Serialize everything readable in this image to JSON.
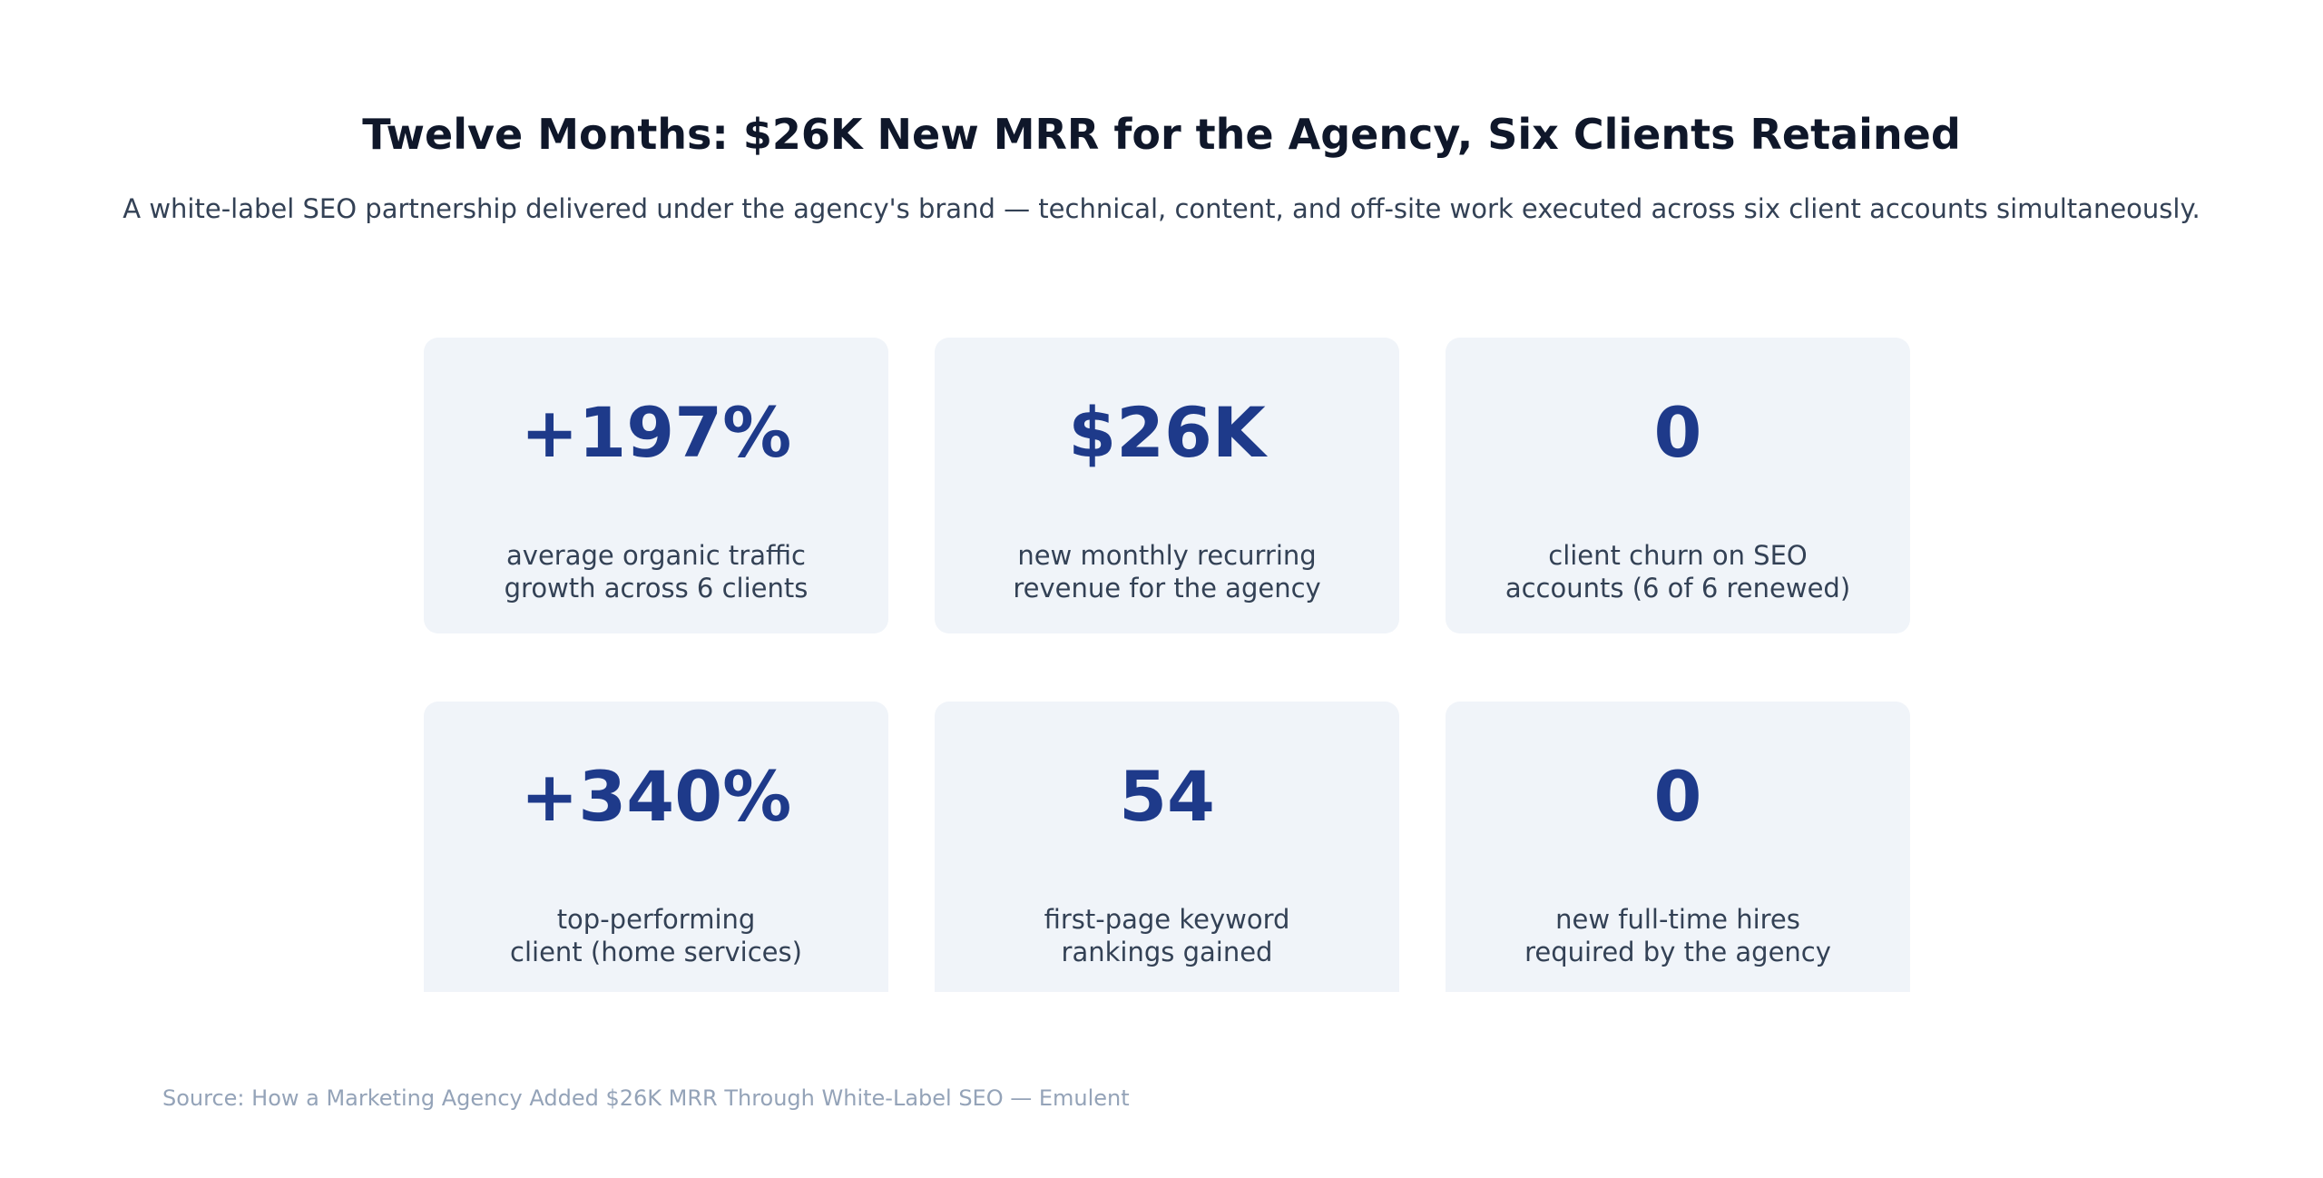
{
  "header": {
    "title": "Twelve Months: $26K New MRR for the Agency, Six Clients Retained",
    "subtitle": "A white-label SEO partnership delivered under the agency's brand — technical, content, and off-site work executed across six client accounts simultaneously."
  },
  "stats": [
    {
      "value": "+197%",
      "label_line1": "average organic traffic",
      "label_line2": "growth across 6 clients"
    },
    {
      "value": "$26K",
      "label_line1": "new monthly recurring",
      "label_line2": "revenue for the agency"
    },
    {
      "value": "0",
      "label_line1": "client churn on SEO",
      "label_line2": "accounts (6 of 6 renewed)"
    },
    {
      "value": "+340%",
      "label_line1": "top-performing",
      "label_line2": "client (home services)"
    },
    {
      "value": "54",
      "label_line1": "first-page keyword",
      "label_line2": "rankings gained"
    },
    {
      "value": "0",
      "label_line1": "new full-time hires",
      "label_line2": "required by the agency"
    }
  ],
  "footer": {
    "source": "Source: How a Marketing Agency Added $26K MRR Through White-Label SEO — Emulent"
  },
  "colors": {
    "title": "#0f172a",
    "subtitle": "#334155",
    "stat_value": "#1e3a8a",
    "card_background": "#f0f4f9",
    "source": "#94a3b8"
  }
}
